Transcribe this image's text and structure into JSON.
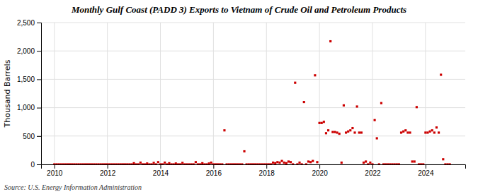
{
  "chart_data": {
    "type": "scatter",
    "title": "Monthly Gulf Coast (PADD 3) Exports to Vietnam of Crude Oil and Petroleum Products",
    "ylabel": "Thousand Barrels",
    "annotations": [
      "Source: U.S. Energy Information Administration"
    ],
    "color": "#cc0000",
    "marker": "square",
    "grid": true,
    "xlim": [
      2009.5,
      2025.5
    ],
    "xticks": [
      2010,
      2012,
      2014,
      2016,
      2018,
      2020,
      2022,
      2024
    ],
    "ylim": [
      0,
      2500
    ],
    "yticks": [
      0,
      500,
      {
        "value": 1000,
        "label": "1,000"
      },
      {
        "value": 1500,
        "label": "1,500"
      },
      {
        "value": 2000,
        "label": "2,000"
      },
      {
        "value": 2500,
        "label": "2,500"
      }
    ],
    "x": [
      2010,
      2010.0833333333333,
      2010.1666666666667,
      2010.25,
      2010.3333333333333,
      2010.4166666666667,
      2010.5,
      2010.5833333333333,
      2010.6666666666667,
      2010.75,
      2010.8333333333333,
      2010.9166666666667,
      2011,
      2011.0833333333333,
      2011.1666666666667,
      2011.25,
      2011.3333333333333,
      2011.4166666666667,
      2011.5,
      2011.5833333333333,
      2011.6666666666667,
      2011.75,
      2011.8333333333333,
      2011.9166666666667,
      2012,
      2012.0833333333333,
      2012.1666666666667,
      2012.25,
      2012.3333333333333,
      2012.4166666666667,
      2012.5,
      2012.5833333333333,
      2012.6666666666667,
      2012.75,
      2012.8333333333333,
      2012.9166666666667,
      2013,
      2013.0833333333333,
      2013.1666666666667,
      2013.25,
      2013.3333333333333,
      2013.4166666666667,
      2013.5,
      2013.5833333333333,
      2013.6666666666667,
      2013.75,
      2013.8333333333333,
      2013.9166666666667,
      2014,
      2014.0833333333333,
      2014.1666666666667,
      2014.25,
      2014.3333333333333,
      2014.4166666666667,
      2014.5,
      2014.5833333333333,
      2014.6666666666667,
      2014.75,
      2014.8333333333333,
      2014.9166666666667,
      2015,
      2015.0833333333333,
      2015.1666666666667,
      2015.25,
      2015.3333333333333,
      2015.4166666666667,
      2015.5,
      2015.5833333333333,
      2015.6666666666667,
      2015.75,
      2015.8333333333333,
      2015.9166666666667,
      2016,
      2016.0833333333333,
      2016.1666666666667,
      2016.25,
      2016.3333333333333,
      2016.4166666666667,
      2016.5,
      2016.5833333333333,
      2016.6666666666667,
      2016.75,
      2016.8333333333333,
      2016.9166666666667,
      2017,
      2017.0833333333333,
      2017.1666666666667,
      2017.25,
      2017.3333333333333,
      2017.4166666666667,
      2017.5,
      2017.5833333333333,
      2017.6666666666667,
      2017.75,
      2017.8333333333333,
      2017.9166666666667,
      2018,
      2018.0833333333333,
      2018.1666666666667,
      2018.25,
      2018.3333333333333,
      2018.4166666666667,
      2018.5,
      2018.5833333333333,
      2018.6666666666667,
      2018.75,
      2018.8333333333333,
      2018.9166666666667,
      2019,
      2019.0833333333333,
      2019.1666666666667,
      2019.25,
      2019.3333333333333,
      2019.4166666666667,
      2019.5,
      2019.5833333333333,
      2019.6666666666667,
      2019.75,
      2019.8333333333333,
      2019.9166666666667,
      2020,
      2020.0833333333333,
      2020.1666666666667,
      2020.25,
      2020.3333333333333,
      2020.4166666666667,
      2020.5,
      2020.5833333333333,
      2020.6666666666667,
      2020.75,
      2020.8333333333333,
      2020.9166666666667,
      2021,
      2021.0833333333333,
      2021.1666666666667,
      2021.25,
      2021.3333333333333,
      2021.4166666666667,
      2021.5,
      2021.5833333333333,
      2021.6666666666667,
      2021.75,
      2021.8333333333333,
      2021.9166666666667,
      2022,
      2022.0833333333333,
      2022.1666666666667,
      2022.25,
      2022.3333333333333,
      2022.4166666666667,
      2022.5,
      2022.5833333333333,
      2022.6666666666667,
      2022.75,
      2022.8333333333333,
      2022.9166666666667,
      2023,
      2023.0833333333333,
      2023.1666666666667,
      2023.25,
      2023.3333333333333,
      2023.4166666666667,
      2023.5,
      2023.5833333333333,
      2023.6666666666667,
      2023.75,
      2023.8333333333333,
      2023.9166666666667,
      2024,
      2024.0833333333333,
      2024.1666666666667,
      2024.25,
      2024.3333333333333,
      2024.4166666666667,
      2024.5,
      2024.5833333333333,
      2024.6666666666667,
      2024.75,
      2024.8333333333333,
      2024.9166666666667
    ],
    "values": [
      0,
      0,
      0,
      0,
      0,
      0,
      0,
      0,
      0,
      0,
      0,
      0,
      0,
      0,
      0,
      0,
      0,
      0,
      0,
      0,
      0,
      0,
      0,
      0,
      0,
      0,
      0,
      0,
      0,
      0,
      0,
      0,
      0,
      0,
      0,
      0,
      20,
      0,
      0,
      30,
      0,
      0,
      15,
      0,
      0,
      25,
      0,
      40,
      0,
      0,
      30,
      0,
      20,
      0,
      0,
      15,
      0,
      0,
      25,
      0,
      0,
      0,
      0,
      0,
      40,
      0,
      0,
      20,
      0,
      0,
      15,
      30,
      0,
      0,
      0,
      0,
      0,
      600,
      0,
      0,
      0,
      0,
      0,
      0,
      0,
      0,
      230,
      0,
      0,
      0,
      0,
      0,
      0,
      0,
      0,
      0,
      0,
      0,
      0,
      30,
      20,
      40,
      30,
      60,
      30,
      20,
      50,
      40,
      0,
      1440,
      0,
      30,
      0,
      1100,
      0,
      50,
      40,
      60,
      1570,
      40,
      730,
      730,
      750,
      550,
      600,
      2170,
      570,
      570,
      560,
      540,
      30,
      1040,
      560,
      580,
      600,
      640,
      560,
      1020,
      560,
      560,
      30,
      50,
      0,
      30,
      0,
      780,
      460,
      0,
      1080,
      0,
      0,
      0,
      0,
      0,
      0,
      0,
      0,
      560,
      580,
      600,
      560,
      560,
      50,
      50,
      1010,
      0,
      0,
      0,
      560,
      560,
      580,
      600,
      560,
      650,
      560,
      1580,
      90,
      0,
      0,
      0
    ]
  }
}
